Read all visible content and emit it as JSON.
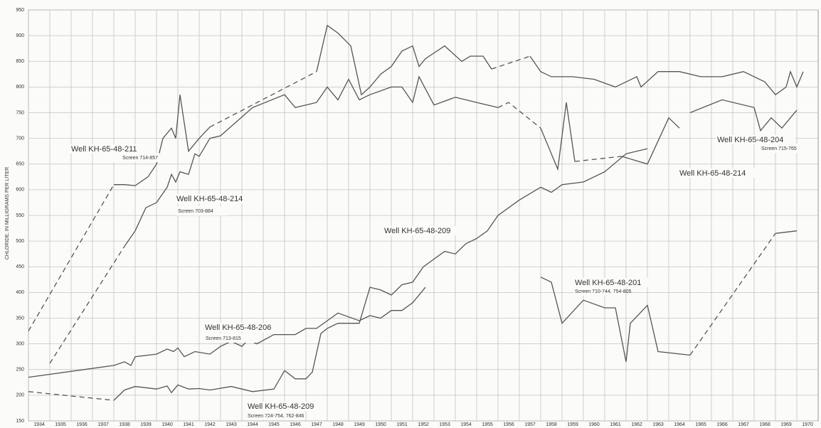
{
  "chart_data": {
    "type": "line",
    "y_label": "CHLORIDE, IN MILLIGRAMS PER LITER",
    "xlim": [
      1934,
      1971
    ],
    "ylim": [
      150,
      950
    ],
    "xticks": [
      1934,
      1935,
      1936,
      1937,
      1938,
      1939,
      1940,
      1941,
      1942,
      1943,
      1944,
      1945,
      1946,
      1947,
      1948,
      1949,
      1950,
      1951,
      1952,
      1953,
      1954,
      1955,
      1956,
      1957,
      1958,
      1959,
      1960,
      1961,
      1962,
      1963,
      1964,
      1965,
      1966,
      1967,
      1968,
      1969,
      1970
    ],
    "yticks": [
      150,
      200,
      250,
      300,
      350,
      400,
      450,
      500,
      550,
      600,
      650,
      700,
      750,
      800,
      850,
      900,
      950
    ],
    "grid": true,
    "color": "#555555",
    "series": [
      {
        "name": "Well KH-65-48-211",
        "screen": "Screen 714-857",
        "segments": [
          {
            "style": "dashed",
            "x": [
              1934,
              1938
            ],
            "values": [
              325,
              610
            ]
          },
          {
            "style": "solid",
            "x": [
              1938,
              1938.5,
              1939,
              1939.6,
              1940,
              1940.3,
              1940.7,
              1940.9,
              1941.1,
              1941.5,
              1942,
              1942.5
            ],
            "values": [
              610,
              610,
              608,
              625,
              650,
              700,
              720,
              700,
              785,
              675,
              700,
              722
            ]
          },
          {
            "style": "dashed",
            "x": [
              1942.5,
              1947.5
            ],
            "values": [
              722,
              830
            ]
          },
          {
            "style": "solid",
            "x": [
              1947.5,
              1948,
              1948.5,
              1949.1,
              1949.6,
              1950,
              1950.5,
              1951,
              1951.5,
              1952,
              1952.3,
              1952.6,
              1953.5,
              1954.3,
              1954.7,
              1955.3,
              1955.7
            ],
            "values": [
              830,
              920,
              905,
              880,
              785,
              800,
              825,
              840,
              870,
              880,
              840,
              855,
              880,
              850,
              860,
              860,
              835
            ]
          },
          {
            "style": "solid",
            "x": [
              1957.5,
              1958,
              1958.5,
              1959.5,
              1960.5,
              1961.5,
              1962,
              1962.5,
              1962.7,
              1963.5,
              1964.5,
              1965.5,
              1966.5,
              1967.5,
              1968.5,
              1969,
              1969.5,
              1969.7,
              1970,
              1970.3
            ],
            "values": [
              860,
              830,
              820,
              820,
              815,
              800,
              810,
              820,
              800,
              830,
              830,
              820,
              820,
              830,
              810,
              785,
              800,
              830,
              800,
              830
            ]
          },
          {
            "style": "dashed",
            "x": [
              1955.7,
              1957.5
            ],
            "values": [
              835,
              860
            ]
          }
        ]
      },
      {
        "name": "Well KH-65-48-214",
        "screen": "Screen 703-884",
        "segments": [
          {
            "style": "dashed",
            "x": [
              1935,
              1938.5
            ],
            "values": [
              262,
              490
            ]
          },
          {
            "style": "solid",
            "x": [
              1938.5,
              1939,
              1939.5,
              1940,
              1940.5,
              1940.7,
              1940.9,
              1941.1,
              1941.5,
              1941.8,
              1942,
              1942.5,
              1943,
              1944.5,
              1946,
              1946.5,
              1947,
              1947.5,
              1948,
              1948.5,
              1949,
              1949.5,
              1950,
              1951,
              1951.5,
              1952,
              1952.3,
              1953,
              1954,
              1955,
              1956
            ],
            "values": [
              490,
              520,
              565,
              575,
              605,
              630,
              615,
              635,
              630,
              670,
              665,
              700,
              705,
              760,
              785,
              760,
              765,
              770,
              800,
              775,
              815,
              775,
              785,
              800,
              800,
              770,
              820,
              765,
              780,
              770,
              760
            ]
          },
          {
            "style": "dashed",
            "x": [
              1956,
              1956.5,
              1958
            ],
            "values": [
              760,
              770,
              720
            ]
          },
          {
            "style": "solid",
            "x": [
              1958,
              1958.8,
              1959.2,
              1959.6
            ],
            "values": [
              720,
              640,
              770,
              655
            ]
          },
          {
            "style": "dashed",
            "x": [
              1959.6,
              1961.8
            ],
            "values": [
              655,
              665
            ]
          },
          {
            "style": "solid",
            "x": [
              1961.8,
              1963,
              1964,
              1964.5
            ],
            "values": [
              665,
              650,
              740,
              720
            ]
          }
        ]
      },
      {
        "name": "Well KH-65-48-209",
        "screen": "Screen 724-754, 762-846",
        "segments": [
          {
            "style": "dashed",
            "x": [
              1934,
              1938
            ],
            "values": [
              207,
              190
            ]
          },
          {
            "style": "solid",
            "x": [
              1938,
              1938.5,
              1939,
              1940,
              1940.5,
              1940.7,
              1941,
              1941.5,
              1942,
              1942.5,
              1943.5,
              1944.5,
              1945.5,
              1946,
              1946.5,
              1947,
              1947.3,
              1947.7,
              1948,
              1948.5,
              1949.5,
              1950,
              1950.5,
              1951,
              1951.5,
              1952,
              1952.5,
              1953,
              1953.5,
              1954,
              1954.5,
              1955,
              1955.5,
              1956,
              1957,
              1958,
              1958.5,
              1959,
              1960,
              1961,
              1962,
              1963
            ],
            "values": [
              190,
              210,
              217,
              212,
              218,
              205,
              220,
              212,
              213,
              210,
              217,
              207,
              212,
              248,
              232,
              232,
              245,
              320,
              330,
              340,
              340,
              410,
              405,
              395,
              415,
              420,
              450,
              465,
              480,
              475,
              495,
              505,
              520,
              550,
              580,
              605,
              595,
              610,
              615,
              635,
              670,
              680
            ]
          }
        ]
      },
      {
        "name": "Well KH-65-48-206",
        "screen": "Screen 713-815",
        "segments": [
          {
            "style": "solid",
            "x": [
              1934,
              1938,
              1938.5,
              1938.8,
              1939,
              1940,
              1940.5,
              1940.8,
              1941,
              1941.3,
              1941.8,
              1942.5,
              1943,
              1943.5,
              1944,
              1944.3,
              1944.7,
              1945.5,
              1946.5,
              1947,
              1947.5,
              1948,
              1948.5,
              1949.5,
              1950,
              1950.5,
              1951,
              1951.5,
              1952,
              1952.6
            ],
            "values": [
              235,
              258,
              265,
              258,
              275,
              280,
              290,
              285,
              292,
              275,
              285,
              280,
              295,
              305,
              295,
              308,
              300,
              318,
              318,
              330,
              330,
              345,
              360,
              345,
              355,
              350,
              365,
              365,
              380,
              410
            ]
          }
        ]
      },
      {
        "name": "Well KH-65-48-201",
        "screen": "Screen 710-744, 754-805",
        "segments": [
          {
            "style": "solid",
            "x": [
              1958,
              1958.5,
              1959,
              1960,
              1961,
              1961.5,
              1962,
              1962.2,
              1963,
              1963.5,
              1965
            ],
            "values": [
              430,
              420,
              340,
              385,
              370,
              370,
              265,
              340,
              375,
              285,
              278
            ]
          },
          {
            "style": "dashed",
            "x": [
              1965,
              1969
            ],
            "values": [
              278,
              515
            ]
          },
          {
            "style": "solid",
            "x": [
              1969,
              1970
            ],
            "values": [
              515,
              520
            ]
          }
        ]
      },
      {
        "name": "Well KH-65-48-204",
        "screen": "Screen 715-765",
        "segments": [
          {
            "style": "solid",
            "x": [
              1965,
              1966.5,
              1968,
              1968.3,
              1968.8,
              1969.3,
              1970
            ],
            "values": [
              750,
              775,
              760,
              715,
              740,
              720,
              755
            ]
          }
        ]
      }
    ]
  }
}
